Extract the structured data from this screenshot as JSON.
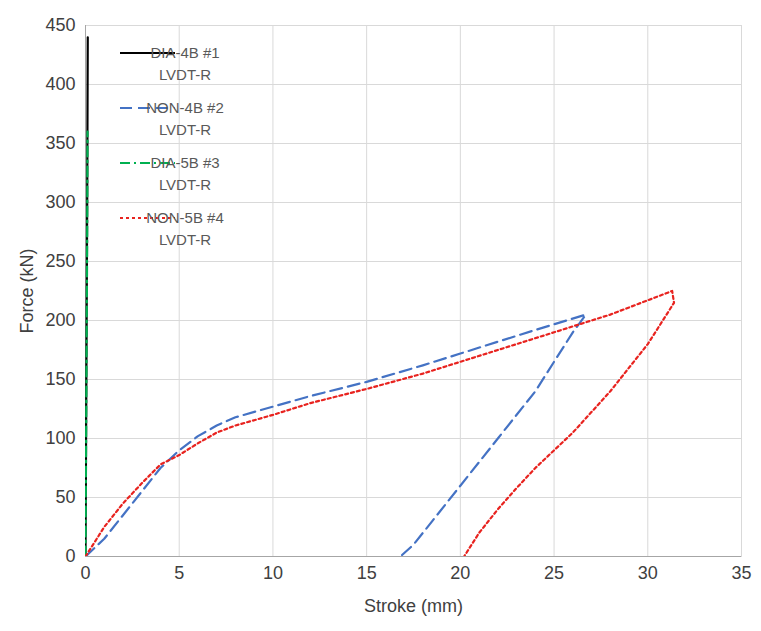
{
  "chart_data": {
    "type": "line",
    "x_label": "Stroke (mm)",
    "y_label": "Force (kN)",
    "xlim": [
      0,
      35
    ],
    "xticks": [
      0,
      5,
      10,
      15,
      20,
      25,
      30,
      35
    ],
    "ylim": [
      0,
      450
    ],
    "yticks": [
      0,
      50,
      100,
      150,
      200,
      250,
      300,
      350,
      400,
      450
    ],
    "grid": true,
    "legend": "top-left",
    "series": [
      {
        "name": "DIA-4B #1\nLVDT-R",
        "color": "#000000",
        "line_style": "solid",
        "x": [
          0,
          0.03,
          0.06,
          0.09,
          0.12
        ],
        "values": [
          0,
          100,
          200,
          300,
          440
        ]
      },
      {
        "name": "NON-4B #2\nLVDT-R",
        "color": "#4472c4",
        "line_style": "dashed",
        "x": [
          0,
          1,
          2,
          3,
          4,
          5,
          6,
          7,
          8,
          10,
          12,
          15,
          18,
          20,
          22,
          24,
          26.7,
          26,
          25,
          24,
          22,
          20,
          18.5,
          17.5,
          16.8
        ],
        "values": [
          0,
          15,
          35,
          55,
          75,
          90,
          102,
          111,
          118,
          127,
          136,
          148,
          162,
          172,
          182,
          192,
          205,
          190,
          165,
          140,
          100,
          60,
          30,
          10,
          0
        ]
      },
      {
        "name": "DIA-5B #3\nLVDT-R",
        "color": "#00b050",
        "line_style": "dashdot",
        "x": [
          0,
          0.03,
          0.06,
          0.09,
          0.11
        ],
        "values": [
          0,
          90,
          180,
          270,
          360
        ]
      },
      {
        "name": "NON-5B #4\nLVDT-R",
        "color": "#e8231f",
        "line_style": "dotted",
        "x": [
          0,
          1,
          2,
          3,
          4,
          5,
          6,
          7,
          8,
          10,
          12,
          15,
          18,
          20,
          22,
          25,
          28,
          31.3,
          31.4,
          30,
          28,
          26,
          24,
          23,
          22,
          21,
          20.2
        ],
        "values": [
          0,
          25,
          45,
          62,
          78,
          86,
          96,
          105,
          111,
          120,
          130,
          142,
          155,
          165,
          175,
          190,
          205,
          225,
          215,
          180,
          140,
          105,
          75,
          58,
          40,
          20,
          0
        ]
      }
    ]
  }
}
